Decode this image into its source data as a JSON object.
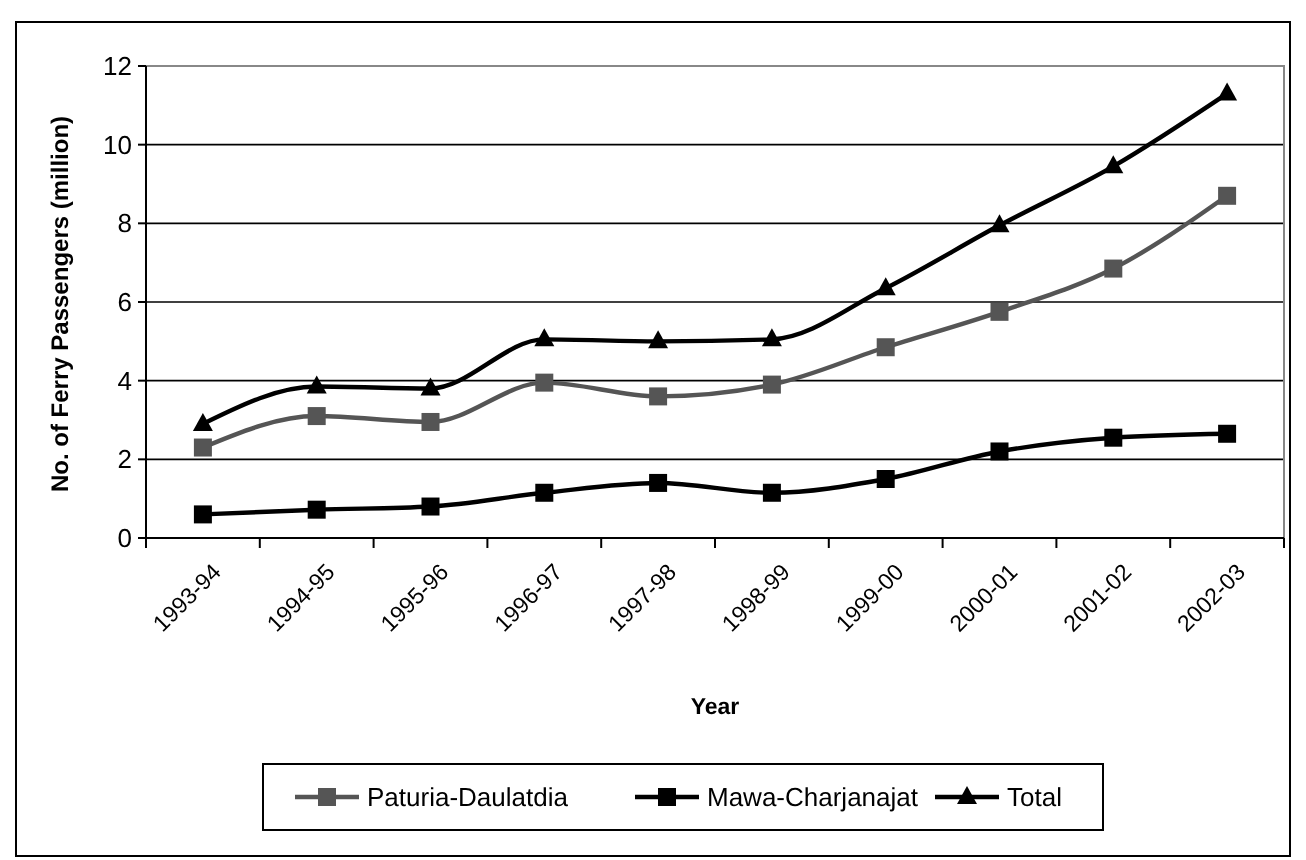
{
  "chart_data": {
    "type": "line",
    "xlabel": "Year",
    "ylabel": "No. of Ferry Passengers (million)",
    "categories": [
      "1993-94",
      "1994-95",
      "1995-96",
      "1996-97",
      "1997-98",
      "1998-99",
      "1999-00",
      "2000-01",
      "2001-02",
      "2002-03"
    ],
    "series": [
      {
        "name": "Paturia-Daulatdia",
        "color": "#555555",
        "marker": "square",
        "values": [
          2.3,
          3.1,
          2.95,
          3.95,
          3.6,
          3.9,
          4.85,
          5.75,
          6.85,
          8.7
        ]
      },
      {
        "name": "Mawa-Charjanajat",
        "color": "#000000",
        "marker": "square",
        "values": [
          0.6,
          0.72,
          0.8,
          1.15,
          1.4,
          1.15,
          1.5,
          2.2,
          2.55,
          2.65
        ]
      },
      {
        "name": "Total",
        "color": "#000000",
        "marker": "triangle",
        "values": [
          2.9,
          3.85,
          3.8,
          5.05,
          5.0,
          5.05,
          6.35,
          7.95,
          9.45,
          11.3
        ]
      }
    ],
    "ylim": [
      0,
      12
    ],
    "yticks": [
      0,
      2,
      4,
      6,
      8,
      10,
      12
    ],
    "grid": "y",
    "legend": "bottom",
    "line_style": "solid"
  }
}
